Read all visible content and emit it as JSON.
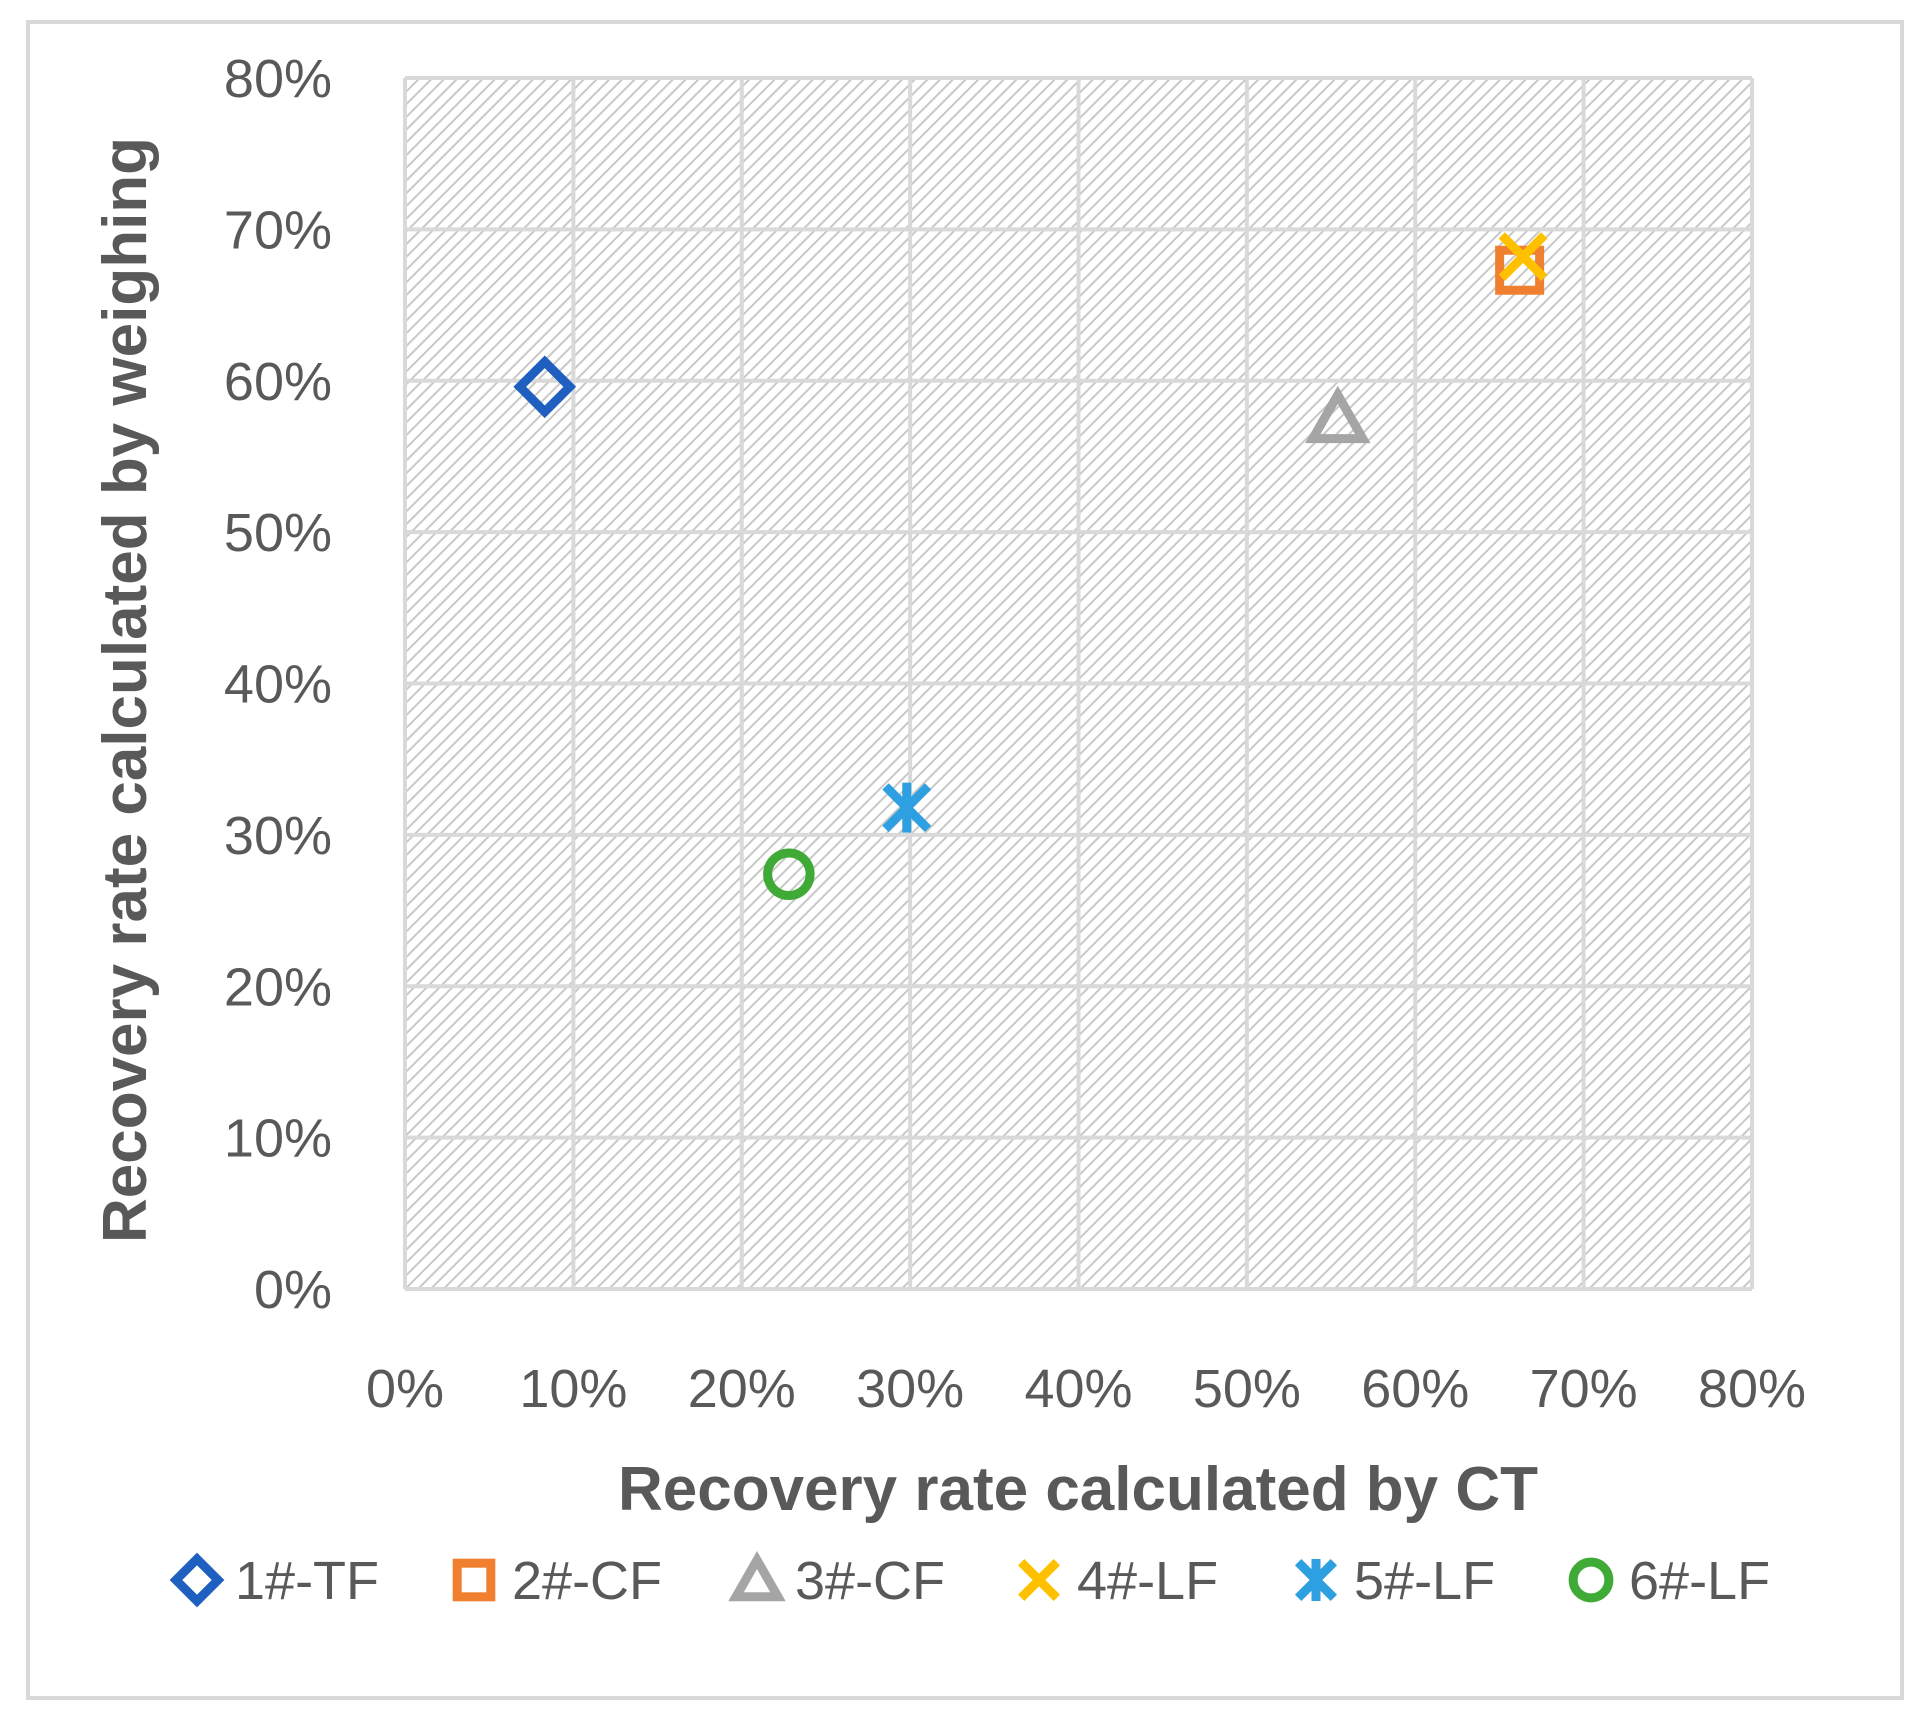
{
  "chart_data": {
    "type": "scatter",
    "title": "",
    "xlabel": "Recovery rate calculated by CT",
    "ylabel": "Recovery rate calculated by  weighing",
    "xlim": [
      0,
      80
    ],
    "ylim": [
      0,
      80
    ],
    "x_ticks": [
      "0%",
      "10%",
      "20%",
      "30%",
      "40%",
      "50%",
      "60%",
      "70%",
      "80%"
    ],
    "y_ticks": [
      "0%",
      "10%",
      "20%",
      "30%",
      "40%",
      "50%",
      "60%",
      "70%",
      "80%"
    ],
    "grid": true,
    "plot_background": "hatched",
    "legend_position": "bottom",
    "series": [
      {
        "name": "1#-TF",
        "marker": "diamond",
        "color": "#1f5fbf",
        "x": [
          8.3
        ],
        "y": [
          59.6
        ]
      },
      {
        "name": "2#-CF",
        "marker": "square",
        "color": "#f07f30",
        "x": [
          66.2
        ],
        "y": [
          67.3
        ]
      },
      {
        "name": "3#-CF",
        "marker": "triangle",
        "color": "#a5a5a5",
        "x": [
          55.4
        ],
        "y": [
          57.5
        ]
      },
      {
        "name": "4#-LF",
        "marker": "x",
        "color": "#ffc000",
        "x": [
          66.4
        ],
        "y": [
          68.2
        ]
      },
      {
        "name": "5#-LF",
        "marker": "star",
        "color": "#2e9fe0",
        "x": [
          29.8
        ],
        "y": [
          31.8
        ]
      },
      {
        "name": "6#-LF",
        "marker": "circle",
        "color": "#3faa35",
        "x": [
          22.8
        ],
        "y": [
          27.4
        ]
      }
    ]
  }
}
